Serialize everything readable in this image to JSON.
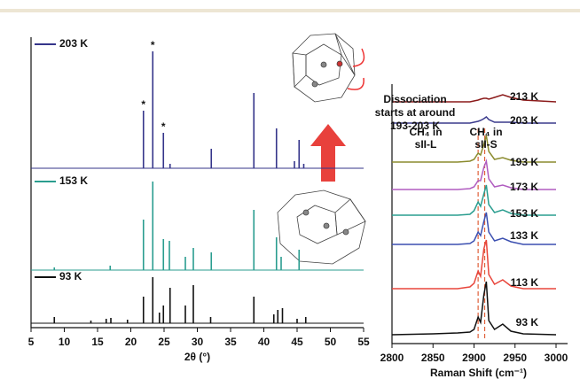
{
  "chart_data": [
    {
      "type": "stem",
      "xlabel": "2θ (°)",
      "xlim": [
        5,
        55
      ],
      "xticks": [
        5,
        10,
        15,
        20,
        25,
        30,
        35,
        40,
        45,
        50,
        55
      ],
      "series": [
        {
          "name": "203 K",
          "color": "#35358a",
          "x": [
            21.9,
            23.3,
            24.9,
            25.9,
            32.1,
            38.5,
            41.9,
            44.6,
            45.3,
            46.0
          ],
          "values": [
            65,
            132,
            40,
            5,
            22,
            85,
            45,
            8,
            32,
            5
          ]
        },
        {
          "name": "153 K",
          "color": "#2a9d8f",
          "x": [
            8.5,
            16.9,
            21.9,
            23.3,
            24.9,
            25.8,
            28.2,
            29.4,
            32.1,
            38.5,
            41.9,
            42.6,
            45.3
          ],
          "values": [
            3,
            5,
            57,
            100,
            35,
            33,
            15,
            25,
            20,
            68,
            37,
            15,
            23
          ]
        },
        {
          "name": "93 K",
          "color": "#111111",
          "x": [
            8.5,
            14.0,
            16.3,
            17.0,
            19.5,
            21.9,
            23.3,
            24.3,
            24.9,
            25.9,
            28.2,
            29.4,
            32.0,
            38.5,
            41.5,
            42.1,
            42.8,
            45.0,
            46.3
          ],
          "values": [
            7,
            3,
            5,
            6,
            4,
            30,
            52,
            12,
            20,
            40,
            20,
            43,
            7,
            30,
            10,
            15,
            17,
            5,
            7
          ]
        }
      ],
      "annotations": [
        {
          "text": "*",
          "x": 21.9
        },
        {
          "text": "*",
          "x": 23.3
        },
        {
          "text": "*",
          "x": 24.9
        }
      ]
    },
    {
      "type": "line",
      "xlabel": "Raman Shift (cm⁻¹)",
      "xlim": [
        2800,
        3000
      ],
      "xticks": [
        2800,
        2850,
        2900,
        2950,
        3000
      ],
      "x": [
        2800,
        2850,
        2880,
        2895,
        2900,
        2905,
        2908,
        2912,
        2915,
        2918,
        2925,
        2935,
        2945,
        2960,
        3000
      ],
      "series": [
        {
          "name": "213 K",
          "color": "#8b1a1a",
          "values": [
            0,
            0,
            0,
            0,
            1,
            2,
            3,
            4,
            4,
            3,
            5,
            8,
            5,
            2,
            0
          ]
        },
        {
          "name": "203 K",
          "color": "#3a3a8c",
          "values": [
            0,
            0,
            0,
            0,
            1,
            2,
            3,
            5,
            7,
            4,
            1,
            1,
            1,
            0,
            0
          ]
        },
        {
          "name": "193 K",
          "color": "#8b8b2e",
          "values": [
            0,
            0,
            0,
            1,
            3,
            10,
            8,
            20,
            30,
            12,
            3,
            5,
            2,
            0,
            0
          ]
        },
        {
          "name": "173 K",
          "color": "#b05cc0",
          "values": [
            0,
            0,
            0,
            1,
            3,
            10,
            10,
            25,
            32,
            12,
            3,
            5,
            2,
            0,
            0
          ]
        },
        {
          "name": "153 K",
          "color": "#2a9d8f",
          "values": [
            0,
            0,
            0,
            1,
            5,
            15,
            10,
            24,
            34,
            12,
            3,
            6,
            2,
            0,
            0
          ]
        },
        {
          "name": "133 K",
          "color": "#3b4fb0",
          "values": [
            0,
            0,
            0,
            1,
            4,
            14,
            10,
            26,
            36,
            14,
            4,
            7,
            3,
            0,
            0
          ]
        },
        {
          "name": "113 K",
          "color": "#e8463c",
          "values": [
            0,
            0,
            0,
            2,
            6,
            20,
            14,
            45,
            55,
            16,
            5,
            10,
            3,
            0,
            0
          ]
        },
        {
          "name": "93 K",
          "color": "#111111",
          "values": [
            0,
            1,
            2,
            3,
            6,
            20,
            14,
            45,
            60,
            16,
            6,
            12,
            4,
            1,
            0
          ]
        }
      ],
      "vlines": [
        2905,
        2913
      ],
      "vline_color": "#e0603a",
      "annotations": [
        {
          "lines": [
            "CH₄ in",
            "sII-L"
          ]
        },
        {
          "lines": [
            "CH₄ in",
            "sII-S"
          ]
        }
      ]
    }
  ],
  "illustration": {
    "text_lines": [
      "Dissociation",
      "starts at around",
      "193-203 K"
    ]
  }
}
